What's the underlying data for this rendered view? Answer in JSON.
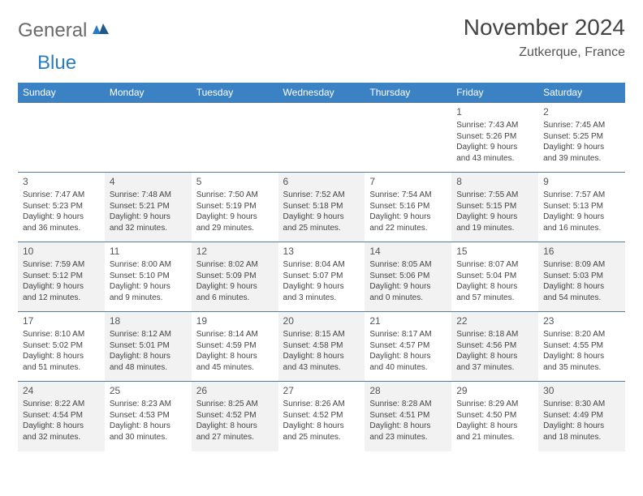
{
  "logo": {
    "text1": "General",
    "text2": "Blue"
  },
  "title": "November 2024",
  "location": "Zutkerque, France",
  "colors": {
    "header_bg": "#3b82c4",
    "header_text": "#ffffff",
    "cell_border": "#5a7a9a",
    "alt_bg": "#f2f2f2",
    "logo_gray": "#6a6a6a",
    "logo_blue": "#2a7bc0"
  },
  "day_headers": [
    "Sunday",
    "Monday",
    "Tuesday",
    "Wednesday",
    "Thursday",
    "Friday",
    "Saturday"
  ],
  "weeks": [
    [
      null,
      null,
      null,
      null,
      null,
      {
        "n": "1",
        "sr": "Sunrise: 7:43 AM",
        "ss": "Sunset: 5:26 PM",
        "d1": "Daylight: 9 hours",
        "d2": "and 43 minutes."
      },
      {
        "n": "2",
        "sr": "Sunrise: 7:45 AM",
        "ss": "Sunset: 5:25 PM",
        "d1": "Daylight: 9 hours",
        "d2": "and 39 minutes."
      }
    ],
    [
      {
        "n": "3",
        "sr": "Sunrise: 7:47 AM",
        "ss": "Sunset: 5:23 PM",
        "d1": "Daylight: 9 hours",
        "d2": "and 36 minutes."
      },
      {
        "n": "4",
        "sr": "Sunrise: 7:48 AM",
        "ss": "Sunset: 5:21 PM",
        "d1": "Daylight: 9 hours",
        "d2": "and 32 minutes.",
        "alt": true
      },
      {
        "n": "5",
        "sr": "Sunrise: 7:50 AM",
        "ss": "Sunset: 5:19 PM",
        "d1": "Daylight: 9 hours",
        "d2": "and 29 minutes."
      },
      {
        "n": "6",
        "sr": "Sunrise: 7:52 AM",
        "ss": "Sunset: 5:18 PM",
        "d1": "Daylight: 9 hours",
        "d2": "and 25 minutes.",
        "alt": true
      },
      {
        "n": "7",
        "sr": "Sunrise: 7:54 AM",
        "ss": "Sunset: 5:16 PM",
        "d1": "Daylight: 9 hours",
        "d2": "and 22 minutes."
      },
      {
        "n": "8",
        "sr": "Sunrise: 7:55 AM",
        "ss": "Sunset: 5:15 PM",
        "d1": "Daylight: 9 hours",
        "d2": "and 19 minutes.",
        "alt": true
      },
      {
        "n": "9",
        "sr": "Sunrise: 7:57 AM",
        "ss": "Sunset: 5:13 PM",
        "d1": "Daylight: 9 hours",
        "d2": "and 16 minutes."
      }
    ],
    [
      {
        "n": "10",
        "sr": "Sunrise: 7:59 AM",
        "ss": "Sunset: 5:12 PM",
        "d1": "Daylight: 9 hours",
        "d2": "and 12 minutes.",
        "alt": true
      },
      {
        "n": "11",
        "sr": "Sunrise: 8:00 AM",
        "ss": "Sunset: 5:10 PM",
        "d1": "Daylight: 9 hours",
        "d2": "and 9 minutes."
      },
      {
        "n": "12",
        "sr": "Sunrise: 8:02 AM",
        "ss": "Sunset: 5:09 PM",
        "d1": "Daylight: 9 hours",
        "d2": "and 6 minutes.",
        "alt": true
      },
      {
        "n": "13",
        "sr": "Sunrise: 8:04 AM",
        "ss": "Sunset: 5:07 PM",
        "d1": "Daylight: 9 hours",
        "d2": "and 3 minutes."
      },
      {
        "n": "14",
        "sr": "Sunrise: 8:05 AM",
        "ss": "Sunset: 5:06 PM",
        "d1": "Daylight: 9 hours",
        "d2": "and 0 minutes.",
        "alt": true
      },
      {
        "n": "15",
        "sr": "Sunrise: 8:07 AM",
        "ss": "Sunset: 5:04 PM",
        "d1": "Daylight: 8 hours",
        "d2": "and 57 minutes."
      },
      {
        "n": "16",
        "sr": "Sunrise: 8:09 AM",
        "ss": "Sunset: 5:03 PM",
        "d1": "Daylight: 8 hours",
        "d2": "and 54 minutes.",
        "alt": true
      }
    ],
    [
      {
        "n": "17",
        "sr": "Sunrise: 8:10 AM",
        "ss": "Sunset: 5:02 PM",
        "d1": "Daylight: 8 hours",
        "d2": "and 51 minutes."
      },
      {
        "n": "18",
        "sr": "Sunrise: 8:12 AM",
        "ss": "Sunset: 5:01 PM",
        "d1": "Daylight: 8 hours",
        "d2": "and 48 minutes.",
        "alt": true
      },
      {
        "n": "19",
        "sr": "Sunrise: 8:14 AM",
        "ss": "Sunset: 4:59 PM",
        "d1": "Daylight: 8 hours",
        "d2": "and 45 minutes."
      },
      {
        "n": "20",
        "sr": "Sunrise: 8:15 AM",
        "ss": "Sunset: 4:58 PM",
        "d1": "Daylight: 8 hours",
        "d2": "and 43 minutes.",
        "alt": true
      },
      {
        "n": "21",
        "sr": "Sunrise: 8:17 AM",
        "ss": "Sunset: 4:57 PM",
        "d1": "Daylight: 8 hours",
        "d2": "and 40 minutes."
      },
      {
        "n": "22",
        "sr": "Sunrise: 8:18 AM",
        "ss": "Sunset: 4:56 PM",
        "d1": "Daylight: 8 hours",
        "d2": "and 37 minutes.",
        "alt": true
      },
      {
        "n": "23",
        "sr": "Sunrise: 8:20 AM",
        "ss": "Sunset: 4:55 PM",
        "d1": "Daylight: 8 hours",
        "d2": "and 35 minutes."
      }
    ],
    [
      {
        "n": "24",
        "sr": "Sunrise: 8:22 AM",
        "ss": "Sunset: 4:54 PM",
        "d1": "Daylight: 8 hours",
        "d2": "and 32 minutes.",
        "alt": true
      },
      {
        "n": "25",
        "sr": "Sunrise: 8:23 AM",
        "ss": "Sunset: 4:53 PM",
        "d1": "Daylight: 8 hours",
        "d2": "and 30 minutes."
      },
      {
        "n": "26",
        "sr": "Sunrise: 8:25 AM",
        "ss": "Sunset: 4:52 PM",
        "d1": "Daylight: 8 hours",
        "d2": "and 27 minutes.",
        "alt": true
      },
      {
        "n": "27",
        "sr": "Sunrise: 8:26 AM",
        "ss": "Sunset: 4:52 PM",
        "d1": "Daylight: 8 hours",
        "d2": "and 25 minutes."
      },
      {
        "n": "28",
        "sr": "Sunrise: 8:28 AM",
        "ss": "Sunset: 4:51 PM",
        "d1": "Daylight: 8 hours",
        "d2": "and 23 minutes.",
        "alt": true
      },
      {
        "n": "29",
        "sr": "Sunrise: 8:29 AM",
        "ss": "Sunset: 4:50 PM",
        "d1": "Daylight: 8 hours",
        "d2": "and 21 minutes."
      },
      {
        "n": "30",
        "sr": "Sunrise: 8:30 AM",
        "ss": "Sunset: 4:49 PM",
        "d1": "Daylight: 8 hours",
        "d2": "and 18 minutes.",
        "alt": true
      }
    ]
  ]
}
